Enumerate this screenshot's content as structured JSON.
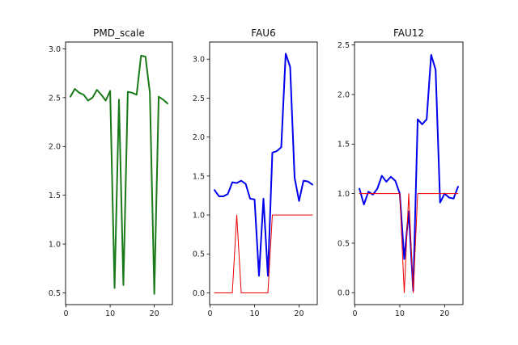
{
  "chart_data": [
    {
      "type": "line",
      "title": "PMD_scale",
      "xlabel": "",
      "ylabel": "",
      "xlim": [
        -0.1,
        24.1
      ],
      "ylim": [
        0.38,
        3.07
      ],
      "xticks": [
        0,
        10,
        20
      ],
      "yticks": [
        0.5,
        1.0,
        1.5,
        2.0,
        2.5,
        3.0
      ],
      "ytick_labels": [
        "0.5",
        "1.0",
        "1.5",
        "2.0",
        "2.5",
        "3.0"
      ],
      "series": [
        {
          "color": "#1a7a1a",
          "line_width": 2,
          "x": [
            1,
            2,
            3,
            4,
            5,
            6,
            7,
            8,
            9,
            10,
            11,
            12,
            13,
            14,
            15,
            16,
            17,
            18,
            19,
            20,
            21,
            22,
            23
          ],
          "y": [
            2.51,
            2.59,
            2.55,
            2.53,
            2.47,
            2.5,
            2.58,
            2.53,
            2.47,
            2.57,
            0.55,
            2.48,
            0.58,
            2.56,
            2.55,
            2.53,
            2.93,
            2.92,
            2.55,
            0.49,
            2.51,
            2.48,
            2.44
          ]
        }
      ]
    },
    {
      "type": "line",
      "title": "FAU6",
      "xlabel": "",
      "ylabel": "",
      "xlim": [
        -0.1,
        24.1
      ],
      "ylim": [
        -0.15,
        3.22
      ],
      "xticks": [
        0,
        10,
        20
      ],
      "yticks": [
        0.0,
        0.5,
        1.0,
        1.5,
        2.0,
        2.5,
        3.0
      ],
      "ytick_labels": [
        "0.0",
        "0.5",
        "1.0",
        "1.5",
        "2.0",
        "2.5",
        "3.0"
      ],
      "series": [
        {
          "color": "#0000ee",
          "line_width": 2,
          "x": [
            1,
            2,
            3,
            4,
            5,
            6,
            7,
            8,
            9,
            10,
            11,
            12,
            13,
            14,
            15,
            16,
            17,
            18,
            19,
            20,
            21,
            22,
            23
          ],
          "y": [
            1.32,
            1.24,
            1.24,
            1.27,
            1.42,
            1.41,
            1.44,
            1.4,
            1.21,
            1.2,
            0.22,
            1.21,
            0.22,
            1.8,
            1.82,
            1.87,
            3.07,
            2.9,
            1.48,
            1.18,
            1.44,
            1.43,
            1.39
          ]
        },
        {
          "color": "#ee0000",
          "line_width": 1,
          "x": [
            1,
            2,
            3,
            4,
            5,
            6,
            7,
            8,
            9,
            10,
            11,
            12,
            13,
            14,
            15,
            16,
            17,
            18,
            19,
            20,
            21,
            22,
            23
          ],
          "y": [
            0,
            0,
            0,
            0,
            0,
            1,
            0,
            0,
            0,
            0,
            0,
            0,
            0,
            1,
            1,
            1,
            1,
            1,
            1,
            1,
            1,
            1,
            1
          ]
        }
      ]
    },
    {
      "type": "line",
      "title": "FAU12",
      "xlabel": "",
      "ylabel": "",
      "xlim": [
        -0.1,
        24.1
      ],
      "ylim": [
        -0.12,
        2.53
      ],
      "xticks": [
        0,
        10,
        20
      ],
      "yticks": [
        0.0,
        0.5,
        1.0,
        1.5,
        2.0,
        2.5
      ],
      "ytick_labels": [
        "0.0",
        "0.5",
        "1.0",
        "1.5",
        "2.0",
        "2.5"
      ],
      "series": [
        {
          "color": "#0000ee",
          "line_width": 2,
          "x": [
            1,
            2,
            3,
            4,
            5,
            6,
            7,
            8,
            9,
            10,
            11,
            12,
            13,
            14,
            15,
            16,
            17,
            18,
            19,
            20,
            21,
            22,
            23
          ],
          "y": [
            1.05,
            0.89,
            1.02,
            0.99,
            1.05,
            1.18,
            1.12,
            1.17,
            1.13,
            1.0,
            0.34,
            0.82,
            0.02,
            1.75,
            1.7,
            1.75,
            2.4,
            2.25,
            0.91,
            1.0,
            0.96,
            0.95,
            1.07
          ]
        },
        {
          "color": "#ee0000",
          "line_width": 1,
          "x": [
            1,
            2,
            3,
            4,
            5,
            6,
            7,
            8,
            9,
            10,
            11,
            12,
            13,
            14,
            15,
            16,
            17,
            18,
            19,
            20,
            21,
            22,
            23
          ],
          "y": [
            1,
            1,
            1,
            1,
            1,
            1,
            1,
            1,
            1,
            1,
            0,
            1,
            0,
            1,
            1,
            1,
            1,
            1,
            1,
            1,
            1,
            1,
            1
          ]
        }
      ]
    }
  ]
}
